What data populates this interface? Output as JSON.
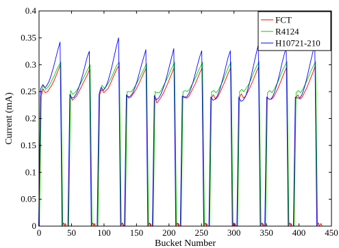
{
  "chart_data": {
    "type": "line",
    "title": "",
    "xlabel": "Bucket Number",
    "ylabel": "Current (mA)",
    "xlim": [
      0,
      450
    ],
    "ylim": [
      0,
      0.4
    ],
    "xticks": [
      0,
      50,
      100,
      150,
      200,
      250,
      300,
      350,
      400,
      450
    ],
    "yticks": [
      0,
      0.05,
      0.1,
      0.15,
      0.2,
      0.25,
      0.3,
      0.35,
      0.4
    ],
    "xtick_labels": [
      "0",
      "50",
      "100",
      "150",
      "200",
      "250",
      "300",
      "350",
      "400",
      "450"
    ],
    "ytick_labels": [
      "0",
      "0.05",
      "0.1",
      "0.15",
      "0.2",
      "0.25",
      "0.3",
      "0.35",
      "0.4"
    ],
    "grid": false,
    "legend_position": "top-right",
    "legend": [
      "FCT",
      "R4124",
      "H10721-210"
    ],
    "train_starts": [
      0,
      45,
      90,
      132,
      175,
      218,
      262,
      305,
      348,
      392
    ],
    "series": [
      {
        "name": "FCT",
        "color": "#ff0000",
        "trains": [
          [
            0.24,
            0.255,
            0.248,
            0.25,
            0.256,
            0.262,
            0.27,
            0.28,
            0.29,
            0.3
          ],
          [
            0.243,
            0.234,
            0.238,
            0.242,
            0.25,
            0.258,
            0.266,
            0.274,
            0.282,
            0.292
          ],
          [
            0.243,
            0.254,
            0.248,
            0.252,
            0.256,
            0.264,
            0.274,
            0.283,
            0.292,
            0.298
          ],
          [
            0.242,
            0.238,
            0.24,
            0.246,
            0.252,
            0.26,
            0.268,
            0.277,
            0.286,
            0.294
          ],
          [
            0.242,
            0.229,
            0.234,
            0.24,
            0.247,
            0.256,
            0.265,
            0.275,
            0.285,
            0.295
          ],
          [
            0.24,
            0.239,
            0.238,
            0.242,
            0.25,
            0.258,
            0.266,
            0.276,
            0.286,
            0.294
          ],
          [
            0.238,
            0.244,
            0.236,
            0.24,
            0.248,
            0.257,
            0.266,
            0.276,
            0.286,
            0.294
          ],
          [
            0.238,
            0.246,
            0.238,
            0.242,
            0.25,
            0.258,
            0.267,
            0.277,
            0.287,
            0.296
          ],
          [
            0.238,
            0.236,
            0.236,
            0.24,
            0.248,
            0.256,
            0.266,
            0.276,
            0.286,
            0.295
          ],
          [
            0.238,
            0.244,
            0.236,
            0.24,
            0.248,
            0.256,
            0.266,
            0.276,
            0.286,
            0.298
          ]
        ]
      },
      {
        "name": "R4124",
        "color": "#00cc00",
        "trains": [
          [
            0.25,
            0.262,
            0.254,
            0.258,
            0.264,
            0.272,
            0.28,
            0.29,
            0.298,
            0.305
          ],
          [
            0.252,
            0.245,
            0.248,
            0.254,
            0.26,
            0.268,
            0.276,
            0.284,
            0.292,
            0.3
          ],
          [
            0.252,
            0.262,
            0.256,
            0.26,
            0.266,
            0.274,
            0.282,
            0.292,
            0.3,
            0.305
          ],
          [
            0.25,
            0.25,
            0.25,
            0.256,
            0.262,
            0.27,
            0.278,
            0.286,
            0.294,
            0.302
          ],
          [
            0.25,
            0.248,
            0.248,
            0.254,
            0.262,
            0.27,
            0.278,
            0.288,
            0.296,
            0.305
          ],
          [
            0.25,
            0.252,
            0.25,
            0.255,
            0.262,
            0.27,
            0.278,
            0.288,
            0.296,
            0.305
          ],
          [
            0.25,
            0.252,
            0.248,
            0.252,
            0.26,
            0.268,
            0.278,
            0.288,
            0.298,
            0.305
          ],
          [
            0.25,
            0.254,
            0.25,
            0.256,
            0.262,
            0.27,
            0.28,
            0.29,
            0.298,
            0.306
          ],
          [
            0.248,
            0.252,
            0.248,
            0.254,
            0.262,
            0.27,
            0.28,
            0.29,
            0.298,
            0.306
          ],
          [
            0.248,
            0.252,
            0.248,
            0.254,
            0.262,
            0.27,
            0.28,
            0.29,
            0.298,
            0.306
          ]
        ]
      },
      {
        "name": "H10721-210",
        "color": "#0000ff",
        "trains": [
          [
            0.255,
            0.263,
            0.257,
            0.262,
            0.27,
            0.282,
            0.296,
            0.312,
            0.328,
            0.342
          ],
          [
            0.245,
            0.238,
            0.24,
            0.246,
            0.256,
            0.268,
            0.282,
            0.298,
            0.314,
            0.325
          ],
          [
            0.245,
            0.258,
            0.252,
            0.258,
            0.268,
            0.282,
            0.298,
            0.316,
            0.334,
            0.35
          ],
          [
            0.244,
            0.24,
            0.242,
            0.248,
            0.258,
            0.27,
            0.285,
            0.3,
            0.314,
            0.328
          ],
          [
            0.243,
            0.235,
            0.238,
            0.245,
            0.255,
            0.267,
            0.282,
            0.298,
            0.314,
            0.33
          ],
          [
            0.242,
            0.24,
            0.24,
            0.246,
            0.256,
            0.268,
            0.283,
            0.299,
            0.314,
            0.326
          ],
          [
            0.24,
            0.234,
            0.236,
            0.242,
            0.252,
            0.266,
            0.281,
            0.298,
            0.314,
            0.326
          ],
          [
            0.24,
            0.232,
            0.234,
            0.24,
            0.252,
            0.267,
            0.284,
            0.302,
            0.32,
            0.337
          ],
          [
            0.24,
            0.236,
            0.236,
            0.243,
            0.254,
            0.268,
            0.284,
            0.302,
            0.318,
            0.332
          ],
          [
            0.24,
            0.238,
            0.238,
            0.244,
            0.255,
            0.27,
            0.287,
            0.305,
            0.322,
            0.337
          ]
        ]
      }
    ]
  }
}
